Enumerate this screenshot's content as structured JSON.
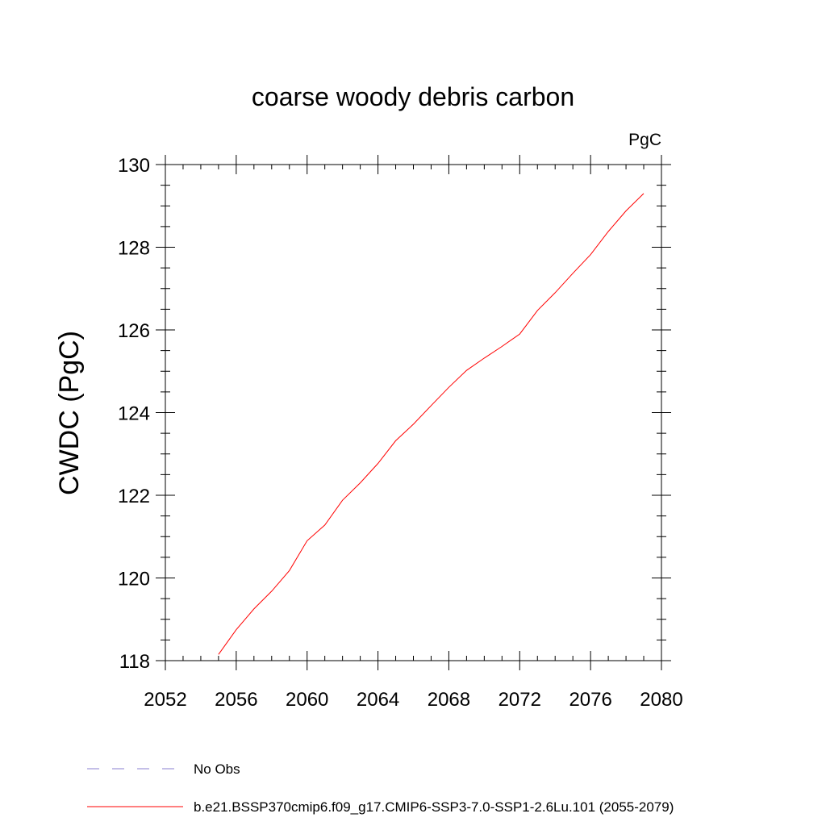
{
  "chart_data": {
    "type": "line",
    "title": "coarse woody debris carbon",
    "units_label": "PgC",
    "ylabel": "CWDC  (PgC)",
    "xlabel": "",
    "xlim": [
      2052,
      2080
    ],
    "ylim": [
      118,
      130
    ],
    "x_ticks": [
      2052,
      2056,
      2060,
      2064,
      2068,
      2072,
      2076,
      2080
    ],
    "y_ticks": [
      118,
      120,
      122,
      124,
      126,
      128,
      130
    ],
    "grid": false,
    "legend_position": "bottom",
    "series": [
      {
        "name": "b.e21.BSSP370cmip6.f09_g17.CMIP6-SSP3-7.0-SSP1-2.6Lu.101 (2055-2079)",
        "color": "#ff0000",
        "dash": "solid",
        "x": [
          2055,
          2056,
          2057,
          2058,
          2059,
          2060,
          2061,
          2062,
          2063,
          2064,
          2065,
          2066,
          2067,
          2068,
          2069,
          2070,
          2071,
          2072,
          2073,
          2074,
          2075,
          2076,
          2077,
          2078,
          2079
        ],
        "y": [
          118.15,
          118.75,
          119.25,
          119.68,
          120.18,
          120.9,
          121.28,
          121.88,
          122.3,
          122.77,
          123.32,
          123.72,
          124.17,
          124.61,
          125.02,
          125.32,
          125.6,
          125.9,
          126.47,
          126.9,
          127.37,
          127.82,
          128.38,
          128.88,
          129.3
        ]
      }
    ],
    "legend": [
      {
        "label": "No Obs",
        "color": "#8a7fd0",
        "dash": "dashed"
      },
      {
        "label": "b.e21.BSSP370cmip6.f09_g17.CMIP6-SSP3-7.0-SSP1-2.6Lu.101 (2055-2079)",
        "color": "#ff0000",
        "dash": "solid"
      }
    ]
  }
}
